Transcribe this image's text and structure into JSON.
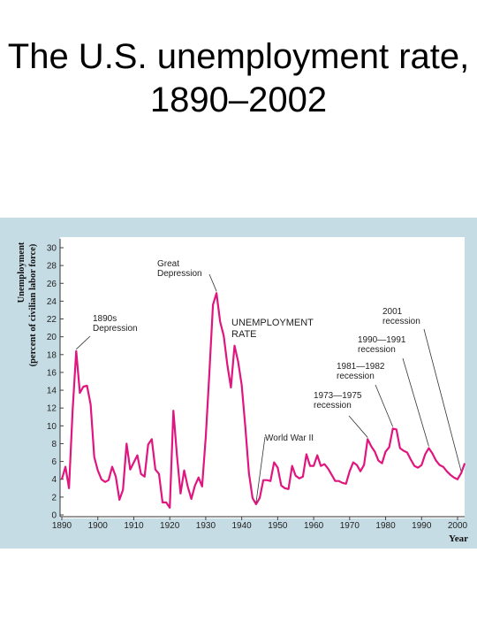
{
  "title": "The U.S. unemployment rate, 1890–2002",
  "chart_data": {
    "type": "line",
    "xlabel": "Year",
    "ylabel_line1": "Unemployment",
    "ylabel_line2": "(percent of civilian labor force)",
    "xlim": [
      1890,
      2002
    ],
    "ylim": [
      0,
      30
    ],
    "xticks": [
      "1890",
      "1900",
      "1910",
      "1920",
      "1930",
      "1940",
      "1950",
      "1960",
      "1970",
      "1980",
      "1990",
      "2000"
    ],
    "yticks": [
      "0",
      "2",
      "4",
      "6",
      "8",
      "10",
      "12",
      "14",
      "16",
      "18",
      "20",
      "22",
      "24",
      "26",
      "28",
      "30"
    ],
    "series_label": [
      "UNEMPLOYMENT",
      "RATE"
    ],
    "color": "#e0157f",
    "series": [
      {
        "x": [
          1890,
          1891,
          1892,
          1893,
          1894,
          1895,
          1896,
          1897,
          1898,
          1899,
          1900,
          1901,
          1902,
          1903,
          1904,
          1905,
          1906,
          1907,
          1908,
          1909,
          1910,
          1911,
          1912,
          1913,
          1914,
          1915,
          1916,
          1917,
          1918,
          1919,
          1920,
          1921,
          1922,
          1923,
          1924,
          1925,
          1926,
          1927,
          1928,
          1929,
          1930,
          1931,
          1932,
          1933,
          1934,
          1935,
          1936,
          1937,
          1938,
          1939,
          1940,
          1941,
          1942,
          1943,
          1944,
          1945,
          1946,
          1947,
          1948,
          1949,
          1950,
          1951,
          1952,
          1953,
          1954,
          1955,
          1956,
          1957,
          1958,
          1959,
          1960,
          1961,
          1962,
          1963,
          1964,
          1965,
          1966,
          1967,
          1968,
          1969,
          1970,
          1971,
          1972,
          1973,
          1974,
          1975,
          1976,
          1977,
          1978,
          1979,
          1980,
          1981,
          1982,
          1983,
          1984,
          1985,
          1986,
          1987,
          1988,
          1989,
          1990,
          1991,
          1992,
          1993,
          1994,
          1995,
          1996,
          1997,
          1998,
          1999,
          2000,
          2001,
          2002
        ],
        "y": [
          4.0,
          5.4,
          3.0,
          11.7,
          18.4,
          13.7,
          14.4,
          14.5,
          12.4,
          6.5,
          5.0,
          4.0,
          3.7,
          3.9,
          5.4,
          4.3,
          1.7,
          2.8,
          8.0,
          5.1,
          5.9,
          6.7,
          4.6,
          4.3,
          7.9,
          8.5,
          5.1,
          4.6,
          1.4,
          1.4,
          0.8,
          11.7,
          6.7,
          2.4,
          5.0,
          3.2,
          1.8,
          3.3,
          4.2,
          3.2,
          8.7,
          15.9,
          23.6,
          24.9,
          21.7,
          20.1,
          16.9,
          14.3,
          19.0,
          17.2,
          14.6,
          9.9,
          4.7,
          1.9,
          1.2,
          1.9,
          3.9,
          3.9,
          3.8,
          5.9,
          5.3,
          3.3,
          3.0,
          2.9,
          5.5,
          4.4,
          4.1,
          4.3,
          6.8,
          5.5,
          5.5,
          6.7,
          5.5,
          5.7,
          5.2,
          4.5,
          3.8,
          3.8,
          3.6,
          3.5,
          4.9,
          5.9,
          5.6,
          4.9,
          5.6,
          8.5,
          7.7,
          7.1,
          6.1,
          5.8,
          7.1,
          7.6,
          9.7,
          9.6,
          7.5,
          7.2,
          7.0,
          6.2,
          5.5,
          5.3,
          5.6,
          6.8,
          7.5,
          6.9,
          6.1,
          5.6,
          5.4,
          4.9,
          4.5,
          4.2,
          4.0,
          4.7,
          5.8
        ]
      }
    ],
    "annotations": [
      {
        "lines": [
          "1890s",
          "Depression"
        ],
        "year": 1894
      },
      {
        "lines": [
          "Great",
          "Depression"
        ],
        "year": 1933
      },
      {
        "lines": [
          "World  War  II"
        ],
        "year": 1944
      },
      {
        "lines": [
          "1973—1975",
          "recession"
        ],
        "year": 1975
      },
      {
        "lines": [
          "1981—1982",
          "recession"
        ],
        "year": 1982
      },
      {
        "lines": [
          "1990—1991",
          "recession"
        ],
        "year": 1992
      },
      {
        "lines": [
          "2001",
          "recession"
        ],
        "year": 2001
      }
    ]
  }
}
